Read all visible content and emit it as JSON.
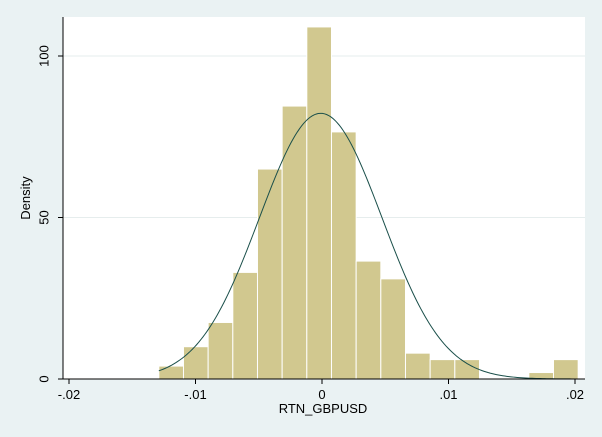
{
  "chart_data": {
    "type": "bar",
    "subtype": "histogram-with-normal-density",
    "xlabel": "RTN_GBPUSD",
    "ylabel": "Density",
    "xlim": [
      -0.02,
      0.02
    ],
    "ylim": [
      0,
      110
    ],
    "xticks": [
      {
        "value": -0.02,
        "label": "-.02"
      },
      {
        "value": -0.01,
        "label": "-.01"
      },
      {
        "value": 0,
        "label": "0"
      },
      {
        "value": 0.01,
        "label": ".01"
      },
      {
        "value": 0.02,
        "label": ".02"
      }
    ],
    "yticks": [
      {
        "value": 0,
        "label": "0"
      },
      {
        "value": 50,
        "label": "50"
      },
      {
        "value": 100,
        "label": "100"
      }
    ],
    "grid": true,
    "legend": "none",
    "bin_width": 0.00195,
    "bins": [
      {
        "start": -0.0129,
        "density": 4
      },
      {
        "start": -0.01095,
        "density": 10
      },
      {
        "start": -0.009,
        "density": 17.5
      },
      {
        "start": -0.00705,
        "density": 33
      },
      {
        "start": -0.0051,
        "density": 65
      },
      {
        "start": -0.00315,
        "density": 84.5
      },
      {
        "start": -0.0012,
        "density": 109
      },
      {
        "start": 0.00075,
        "density": 76.5
      },
      {
        "start": 0.0027,
        "density": 36.5
      },
      {
        "start": 0.00465,
        "density": 31
      },
      {
        "start": 0.0066,
        "density": 8
      },
      {
        "start": 0.00855,
        "density": 6
      },
      {
        "start": 0.0105,
        "density": 6
      },
      {
        "start": 0.01245,
        "density": 0
      },
      {
        "start": 0.0144,
        "density": 0
      },
      {
        "start": 0.01635,
        "density": 2
      },
      {
        "start": 0.0183,
        "density": 6
      }
    ],
    "normal_curve": {
      "mean": -0.0001,
      "sd": 0.00485
    },
    "colors": {
      "background": "#eaf2f3",
      "plot_area": "#ffffff",
      "bar_fill": "#d1c88f",
      "bar_stroke": "#ffffff",
      "curve": "#1a4f4a",
      "grid": "#e6eded"
    }
  }
}
